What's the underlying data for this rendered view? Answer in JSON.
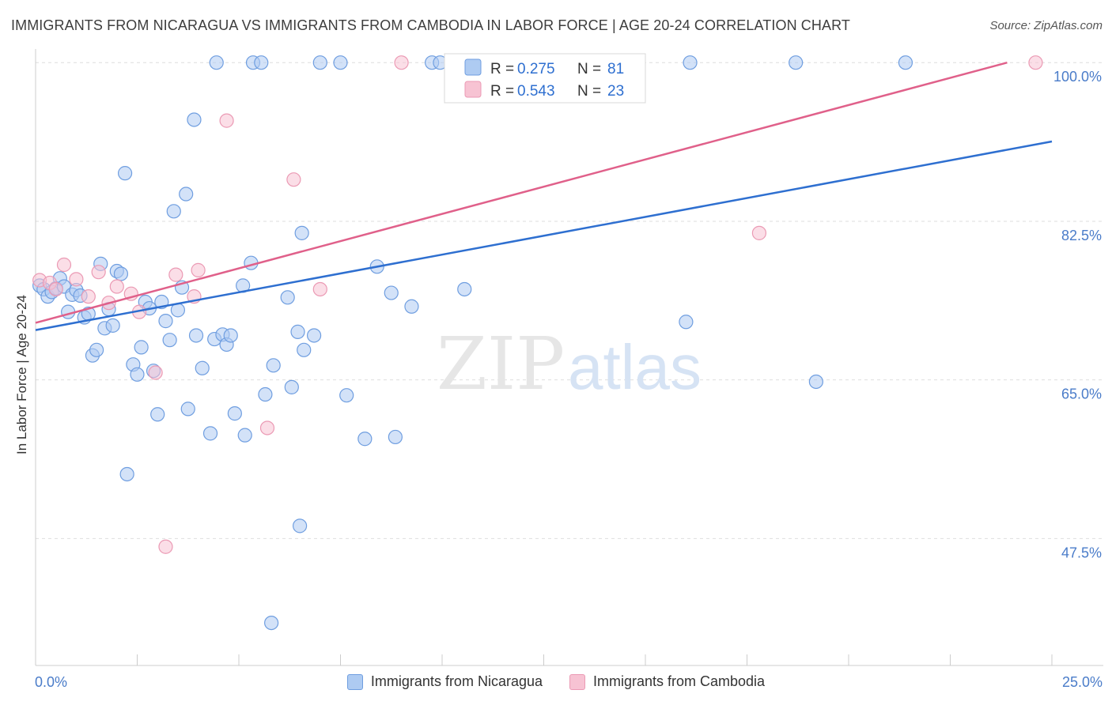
{
  "title": "IMMIGRANTS FROM NICARAGUA VS IMMIGRANTS FROM CAMBODIA IN LABOR FORCE | AGE 20-24 CORRELATION CHART",
  "source": "Source: ZipAtlas.com",
  "watermark": {
    "zip": "ZIP",
    "atlas": "atlas"
  },
  "colors": {
    "blue_fill": "#aecbf2",
    "blue_stroke": "#6f9ee0",
    "blue_line": "#2e6fd0",
    "pink_fill": "#f7c3d3",
    "pink_stroke": "#eb9ab4",
    "pink_line": "#e0608a",
    "value_text": "#2e6fd0",
    "grid": "#dedede"
  },
  "legend": {
    "rows": [
      {
        "r_label": "R =",
        "r_value": "0.275",
        "n_label": "N =",
        "n_value": "81",
        "series": "blue"
      },
      {
        "r_label": "R =",
        "r_value": "0.543",
        "n_label": "N =",
        "n_value": "23",
        "series": "pink"
      }
    ]
  },
  "chart_data": {
    "type": "scatter",
    "title": "IMMIGRANTS FROM NICARAGUA VS IMMIGRANTS FROM CAMBODIA IN LABOR FORCE | AGE 20-24 CORRELATION CHART",
    "xlabel": "",
    "ylabel": "In Labor Force | Age 20-24",
    "xlim": [
      0,
      25
    ],
    "ylim": [
      33.5,
      101.5
    ],
    "x_tick_labels": [
      "0.0%",
      "25.0%"
    ],
    "y_ticks": [
      47.5,
      65.0,
      82.5,
      100.0
    ],
    "y_tick_labels": [
      "47.5%",
      "65.0%",
      "82.5%",
      "100.0%"
    ],
    "grid": true,
    "legend_position": "bottom",
    "series": [
      {
        "name": "Immigrants from Nicaragua",
        "color": "blue",
        "R": 0.275,
        "N": 81,
        "trend": {
          "x": [
            0,
            25
          ],
          "y": [
            70.5,
            91.3
          ]
        },
        "points": [
          [
            0.1,
            75.4
          ],
          [
            0.2,
            75.0
          ],
          [
            0.3,
            74.2
          ],
          [
            0.4,
            74.7
          ],
          [
            0.5,
            75.1
          ],
          [
            0.6,
            76.2
          ],
          [
            0.7,
            75.3
          ],
          [
            0.8,
            72.5
          ],
          [
            0.9,
            74.4
          ],
          [
            1.0,
            74.9
          ],
          [
            1.1,
            74.3
          ],
          [
            1.2,
            71.9
          ],
          [
            1.3,
            72.3
          ],
          [
            1.4,
            67.7
          ],
          [
            1.5,
            68.3
          ],
          [
            1.6,
            77.8
          ],
          [
            1.7,
            70.7
          ],
          [
            1.8,
            72.8
          ],
          [
            1.9,
            71.0
          ],
          [
            2.0,
            77.0
          ],
          [
            2.1,
            76.7
          ],
          [
            2.2,
            87.8
          ],
          [
            2.25,
            54.6
          ],
          [
            2.4,
            66.7
          ],
          [
            2.5,
            65.6
          ],
          [
            2.6,
            68.6
          ],
          [
            2.7,
            73.6
          ],
          [
            2.8,
            72.9
          ],
          [
            2.9,
            66.0
          ],
          [
            3.0,
            61.2
          ],
          [
            3.1,
            73.6
          ],
          [
            3.2,
            71.5
          ],
          [
            3.3,
            69.4
          ],
          [
            3.4,
            83.6
          ],
          [
            3.5,
            72.7
          ],
          [
            3.6,
            75.2
          ],
          [
            3.7,
            85.5
          ],
          [
            3.75,
            61.8
          ],
          [
            3.9,
            93.7
          ],
          [
            3.95,
            69.9
          ],
          [
            4.1,
            66.3
          ],
          [
            4.3,
            59.1
          ],
          [
            4.45,
            100.0
          ],
          [
            4.4,
            69.5
          ],
          [
            4.6,
            70.0
          ],
          [
            4.7,
            68.9
          ],
          [
            4.8,
            69.9
          ],
          [
            4.9,
            61.3
          ],
          [
            5.1,
            75.4
          ],
          [
            5.15,
            58.9
          ],
          [
            5.3,
            77.9
          ],
          [
            5.35,
            100.0
          ],
          [
            5.55,
            100.0
          ],
          [
            5.65,
            63.4
          ],
          [
            5.85,
            66.6
          ],
          [
            5.8,
            38.2
          ],
          [
            6.2,
            74.1
          ],
          [
            6.3,
            64.2
          ],
          [
            6.45,
            70.3
          ],
          [
            6.5,
            48.9
          ],
          [
            6.55,
            81.2
          ],
          [
            6.6,
            68.3
          ],
          [
            6.85,
            69.9
          ],
          [
            7.0,
            100.0
          ],
          [
            7.5,
            100.0
          ],
          [
            7.65,
            63.3
          ],
          [
            8.1,
            58.5
          ],
          [
            8.4,
            77.5
          ],
          [
            8.75,
            74.6
          ],
          [
            8.85,
            58.7
          ],
          [
            9.25,
            73.1
          ],
          [
            9.75,
            100.0
          ],
          [
            9.95,
            100.0
          ],
          [
            10.55,
            75.0
          ],
          [
            11.7,
            98.3
          ],
          [
            12.0,
            100.0
          ],
          [
            16.0,
            71.4
          ],
          [
            16.1,
            100.0
          ],
          [
            18.7,
            100.0
          ],
          [
            19.2,
            64.8
          ],
          [
            21.4,
            100.0
          ]
        ]
      },
      {
        "name": "Immigrants from Cambodia",
        "color": "pink",
        "R": 0.543,
        "N": 23,
        "trend": {
          "x": [
            0,
            23.9
          ],
          "y": [
            71.3,
            100.0
          ]
        },
        "points": [
          [
            0.1,
            76.0
          ],
          [
            0.35,
            75.7
          ],
          [
            0.5,
            75.0
          ],
          [
            0.7,
            77.7
          ],
          [
            1.0,
            76.1
          ],
          [
            1.3,
            74.2
          ],
          [
            1.55,
            76.9
          ],
          [
            1.8,
            73.5
          ],
          [
            2.0,
            75.3
          ],
          [
            2.35,
            74.5
          ],
          [
            2.55,
            72.5
          ],
          [
            2.95,
            65.8
          ],
          [
            3.2,
            46.6
          ],
          [
            3.45,
            76.6
          ],
          [
            3.9,
            74.2
          ],
          [
            4.0,
            77.1
          ],
          [
            4.7,
            93.6
          ],
          [
            5.7,
            59.7
          ],
          [
            6.35,
            87.1
          ],
          [
            7.0,
            75.0
          ],
          [
            9.0,
            100.0
          ],
          [
            17.8,
            81.2
          ],
          [
            24.6,
            100.0
          ]
        ]
      }
    ]
  }
}
